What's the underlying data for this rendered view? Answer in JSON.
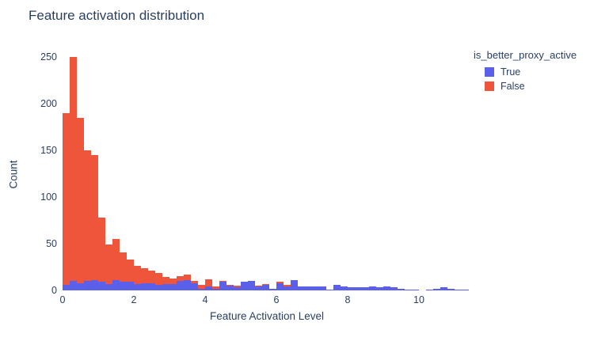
{
  "title": "Feature activation distribution",
  "colors": {
    "true_series": "#5B60EB",
    "false_series": "#EF553B",
    "text": "#2a3f5f",
    "background": "#ffffff"
  },
  "legend": {
    "title": "is_better_proxy_active",
    "items": [
      {
        "label": "True",
        "color": "#5B60EB"
      },
      {
        "label": "False",
        "color": "#EF553B"
      }
    ]
  },
  "chart_data": {
    "type": "bar",
    "subtype": "stacked-histogram",
    "title": "Feature activation distribution",
    "xlabel": "Feature Activation Level",
    "ylabel": "Count",
    "legend_title": "is_better_proxy_active",
    "legend_position": "top-right-outside",
    "grid": false,
    "bin_start": 0.0,
    "bin_width": 0.2,
    "xlim": [
      0,
      11.4
    ],
    "ylim": [
      0,
      263
    ],
    "x_ticks": [
      0,
      2,
      4,
      6,
      8,
      10
    ],
    "y_ticks": [
      0,
      50,
      100,
      150,
      200,
      250
    ],
    "series": [
      {
        "name": "True",
        "color": "#5B60EB",
        "values": [
          6,
          10,
          8,
          10,
          11,
          9,
          7,
          11,
          9,
          9,
          7,
          8,
          8,
          6,
          7,
          7,
          10,
          11,
          8,
          2,
          4,
          2,
          9,
          5,
          3,
          9,
          10,
          4,
          6,
          2,
          8,
          4,
          11,
          4,
          4,
          4,
          4,
          1,
          6,
          4,
          3,
          3,
          3,
          4,
          3,
          4,
          3,
          2,
          1,
          1,
          0,
          1,
          2,
          3,
          2,
          1,
          1
        ]
      },
      {
        "name": "False",
        "color": "#EF553B",
        "values": [
          184,
          240,
          177,
          140,
          134,
          69,
          42,
          44,
          32,
          24,
          19,
          16,
          13,
          13,
          7,
          6,
          5,
          6,
          2,
          4,
          8,
          2,
          1,
          1,
          2,
          0,
          0,
          1,
          1,
          0,
          1,
          2,
          0,
          0,
          0,
          0,
          0,
          0,
          0,
          0,
          0,
          0,
          0,
          0,
          0,
          0,
          0,
          0,
          0,
          0,
          0,
          0,
          0,
          0,
          0,
          0,
          0
        ]
      }
    ]
  }
}
